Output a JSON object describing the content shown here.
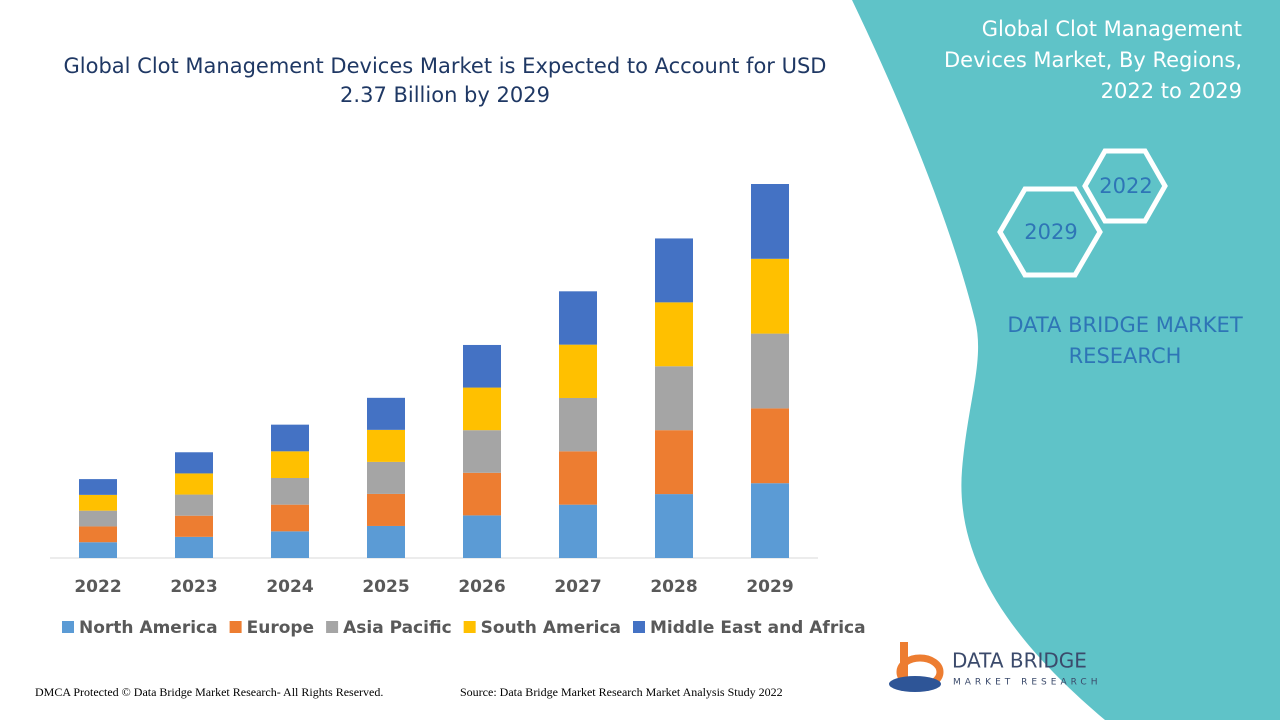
{
  "chart_data": {
    "type": "stacked-bar",
    "title": "Global Clot Management Devices Market is Expected to Account for USD 2.37 Billion by 2029",
    "categories": [
      "2022",
      "2023",
      "2024",
      "2025",
      "2026",
      "2027",
      "2028",
      "2029"
    ],
    "series": [
      {
        "name": "North America",
        "color": "#5b9bd5",
        "values": [
          0.1,
          0.134,
          0.169,
          0.203,
          0.27,
          0.338,
          0.405,
          0.474
        ]
      },
      {
        "name": "Europe",
        "color": "#ed7d31",
        "values": [
          0.1,
          0.134,
          0.169,
          0.203,
          0.27,
          0.338,
          0.405,
          0.474
        ]
      },
      {
        "name": "Asia Pacific",
        "color": "#a5a5a5",
        "values": [
          0.1,
          0.134,
          0.169,
          0.203,
          0.27,
          0.338,
          0.405,
          0.474
        ]
      },
      {
        "name": "South America",
        "color": "#ffc000",
        "values": [
          0.1,
          0.134,
          0.169,
          0.203,
          0.27,
          0.338,
          0.405,
          0.474
        ]
      },
      {
        "name": "Middle East and Africa",
        "color": "#4472c4",
        "values": [
          0.1,
          0.134,
          0.169,
          0.203,
          0.27,
          0.338,
          0.405,
          0.474
        ]
      }
    ]
  },
  "panel": {
    "title": "Global Clot Management Devices Market, By Regions, 2022 to 2029",
    "hex_labels": [
      "2022",
      "2029"
    ],
    "brand": "DATA BRIDGE MARKET RESEARCH"
  },
  "logo": {
    "name": "DATA BRIDGE",
    "tagline": "MARKET RESEARCH"
  },
  "footer": {
    "copyright": "DMCA Protected © Data Bridge Market Research- All Rights Reserved.",
    "source": "Source: Data Bridge Market Research Market Analysis Study 2022"
  }
}
